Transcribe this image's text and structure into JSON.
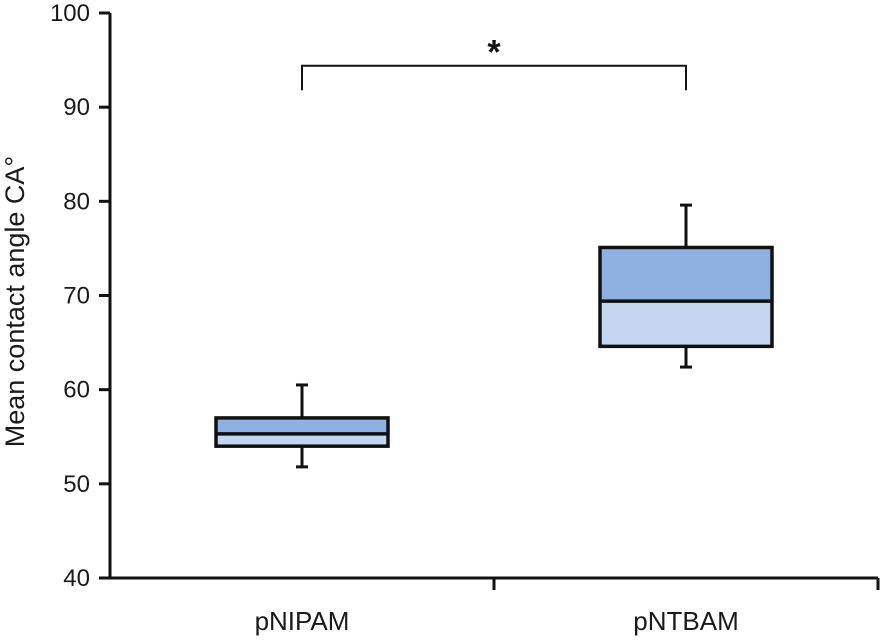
{
  "chart_data": {
    "type": "boxplot",
    "title": "",
    "xlabel": "",
    "ylabel": "Mean contact angle CA°",
    "ylim": [
      40,
      100
    ],
    "y_ticks": [
      40,
      50,
      60,
      70,
      80,
      90,
      100
    ],
    "categories": [
      "pNIPAM",
      "pNTBAM"
    ],
    "boxes": [
      {
        "category": "pNIPAM",
        "min": 51.8,
        "q1": 54.0,
        "median": 55.3,
        "q3": 57.0,
        "max": 60.5
      },
      {
        "category": "pNTBAM",
        "min": 62.4,
        "q1": 64.6,
        "median": 69.4,
        "q3": 75.1,
        "max": 79.6
      }
    ],
    "significance": {
      "between": [
        "pNIPAM",
        "pNTBAM"
      ],
      "label": "*",
      "y": 94.4,
      "tick_bottom": 91.8
    },
    "grid": false,
    "colors": {
      "upper_box": "#8eb1e2",
      "lower_box": "#c5d7f0",
      "stroke": "#111111"
    }
  }
}
